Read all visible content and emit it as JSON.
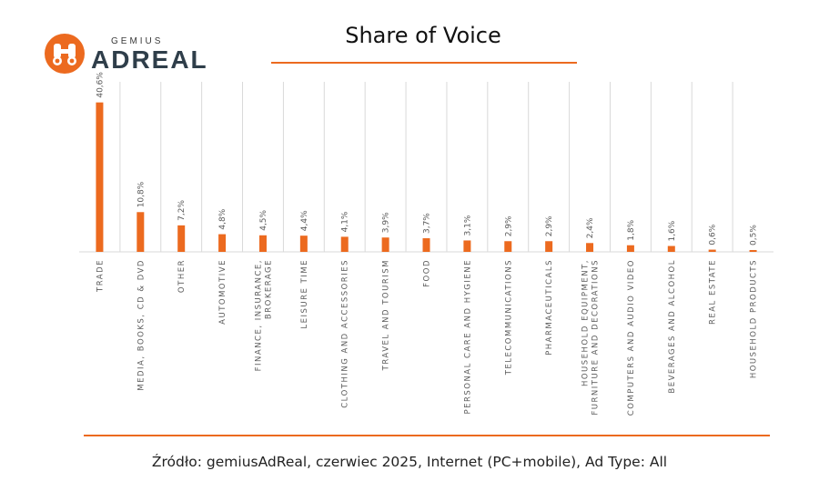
{
  "logo": {
    "top_text": "GEMIUS",
    "main_text": "ADREAL"
  },
  "title": "Share of Voice",
  "source": "Źródło: gemiusAdReal, czerwiec 2025, Internet (PC+mobile), Ad Type: All",
  "colors": {
    "bar": "#ec6a1f",
    "grid": "#d9d9d9",
    "accent": "#ec6a1f",
    "text": "#595959"
  },
  "chart_data": {
    "type": "bar",
    "title": "Share of Voice",
    "xlabel": "",
    "ylabel": "",
    "ylim": [
      0,
      42
    ],
    "grid": "vertical category separators",
    "categories": [
      [
        "TRADE"
      ],
      [
        "MEDIA, BOOKS, CD & DVD"
      ],
      [
        "OTHER"
      ],
      [
        "AUTOMOTIVE"
      ],
      [
        "FINANCE, INSURANCE,",
        "BROKERAGE"
      ],
      [
        "LEISURE TIME"
      ],
      [
        "CLOTHING AND ACCESSORIES"
      ],
      [
        "TRAVEL AND TOURISM"
      ],
      [
        "FOOD"
      ],
      [
        "PERSONAL CARE AND HYGIENE"
      ],
      [
        "TELECOMMUNICATIONS"
      ],
      [
        "PHARMACEUTICALS"
      ],
      [
        "HOUSEHOLD EQUIPMENT,",
        "FURNITURE AND DECORATIONS"
      ],
      [
        "COMPUTERS AND AUDIO VIDEO"
      ],
      [
        "BEVERAGES AND ALCOHOL"
      ],
      [
        "REAL ESTATE"
      ],
      [
        "HOUSEHOLD PRODUCTS"
      ]
    ],
    "values": [
      40.6,
      10.8,
      7.2,
      4.8,
      4.5,
      4.4,
      4.1,
      3.9,
      3.7,
      3.1,
      2.9,
      2.9,
      2.4,
      1.8,
      1.6,
      0.6,
      0.5
    ],
    "value_labels": [
      "40,6%",
      "10,8%",
      "7,2%",
      "4,8%",
      "4,5%",
      "4,4%",
      "4,1%",
      "3,9%",
      "3,7%",
      "3,1%",
      "2,9%",
      "2,9%",
      "2,4%",
      "1,8%",
      "1,6%",
      "0,6%",
      "0,5%"
    ]
  }
}
